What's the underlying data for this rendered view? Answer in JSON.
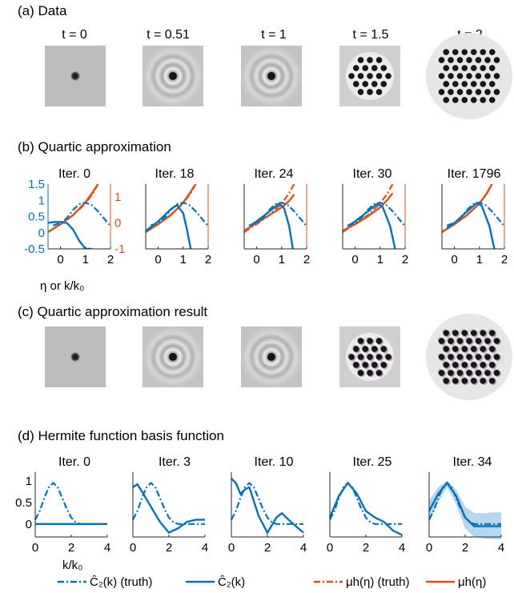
{
  "panels": {
    "a": {
      "title": "(a) Data",
      "columns": [
        "t = 0",
        "t = 0.51",
        "t = 1",
        "t = 1.5",
        "t = 2"
      ]
    },
    "b": {
      "title": "(b) Quartic approximation",
      "columns": [
        "Iter. 0",
        "Iter. 18",
        "Iter. 24",
        "Iter. 30",
        "Iter. 1796"
      ],
      "xlabel": "η or k/k₀",
      "left_ticks": [
        "1.5",
        "1",
        "0.5",
        "0",
        "-0.5"
      ],
      "right_ticks": [
        "1",
        "0",
        "-1"
      ],
      "x_ticks": [
        "0",
        "1",
        "2"
      ]
    },
    "c": {
      "title": "(c) Quartic approximation result"
    },
    "d": {
      "title": "(d) Hermite function basis function",
      "columns": [
        "Iter. 0",
        "Iter. 3",
        "Iter. 10",
        "Iter. 25",
        "Iter. 34"
      ],
      "xlabel": "k/k₀",
      "left_ticks": [
        "1",
        "0.5",
        "0"
      ],
      "x_ticks": [
        "0",
        "2",
        "4"
      ]
    }
  },
  "legend": [
    {
      "label": "Ĉ₂(k) (truth)",
      "color": "#0072bd",
      "dash": "dashdot"
    },
    {
      "label": "Ĉ₂(k)",
      "color": "#0072bd",
      "dash": "solid"
    },
    {
      "label": "μh(η) (truth)",
      "color": "#d95319",
      "dash": "dashdot"
    },
    {
      "label": "μh(η)",
      "color": "#d95319",
      "dash": "solid"
    }
  ],
  "colors": {
    "blue": "#0072bd",
    "orange": "#d95319",
    "band": "#a8cfee",
    "axis": "#262626"
  },
  "chart_data": [
    {
      "type": "line",
      "id": "b",
      "x_range": [
        -0.5,
        2
      ],
      "left_ylim": [
        -0.5,
        1.5
      ],
      "right_ylim": [
        -1,
        1.5
      ],
      "truth_C2": {
        "x": [
          -0.3,
          0,
          0.25,
          0.5,
          0.75,
          1,
          1.25,
          1.5,
          1.75,
          2
        ],
        "y": [
          0.22,
          0.3,
          0.45,
          0.7,
          0.88,
          0.93,
          0.85,
          0.66,
          0.43,
          0.2
        ]
      },
      "truth_mu": {
        "x": [
          -0.5,
          0,
          0.5,
          1,
          1.3,
          1.5
        ],
        "y": [
          -0.35,
          -0.05,
          0.3,
          0.75,
          1.15,
          1.5
        ]
      },
      "iterations": [
        {
          "C2": {
            "x": [
              -0.5,
              -0.25,
              0,
              0.25,
              0.5,
              0.75,
              1,
              1.25
            ],
            "y": [
              0.3,
              0.33,
              0.33,
              0.3,
              0.1,
              -0.25,
              -0.5,
              -0.5
            ]
          },
          "mu": {
            "x": [
              -0.5,
              0,
              0.5,
              1,
              1.3,
              1.5
            ],
            "y": [
              -0.35,
              -0.05,
              0.3,
              0.8,
              1.2,
              1.5
            ]
          }
        },
        {
          "C2": {
            "x": [
              -0.5,
              0,
              0.5,
              0.75,
              1,
              1.15,
              1.3
            ],
            "y": [
              0.05,
              0.35,
              0.72,
              0.85,
              0.6,
              0.1,
              -0.5
            ]
          },
          "mu": {
            "x": [
              -0.5,
              0,
              0.5,
              1,
              1.3,
              1.5
            ],
            "y": [
              -0.35,
              -0.05,
              0.3,
              0.78,
              1.2,
              1.5
            ]
          }
        },
        {
          "C2": {
            "x": [
              -0.3,
              0,
              0.5,
              0.9,
              1.1,
              1.3,
              1.45
            ],
            "y": [
              0.2,
              0.35,
              0.65,
              0.9,
              0.75,
              0.2,
              -0.5
            ]
          },
          "mu": {
            "x": [
              -0.5,
              0,
              0.5,
              1,
              1.3,
              1.5
            ],
            "y": [
              -0.3,
              0,
              0.3,
              0.6,
              0.85,
              1.1
            ]
          }
        },
        {
          "C2": {
            "x": [
              -0.3,
              0,
              0.5,
              0.9,
              1.1,
              1.4,
              1.6
            ],
            "y": [
              0.2,
              0.35,
              0.65,
              0.9,
              0.8,
              0.2,
              -0.5
            ]
          },
          "mu": {
            "x": [
              -0.5,
              0,
              0.5,
              1,
              1.3,
              1.5
            ],
            "y": [
              -0.3,
              -0.05,
              0.25,
              0.6,
              0.9,
              1.15
            ]
          }
        },
        {
          "C2": {
            "x": [
              -0.3,
              0,
              0.5,
              0.9,
              1.1,
              1.4,
              1.6
            ],
            "y": [
              0.15,
              0.3,
              0.65,
              0.92,
              0.82,
              0.2,
              -0.5
            ]
          },
          "mu": {
            "x": [
              -0.5,
              0,
              0.5,
              1,
              1.3,
              1.5
            ],
            "y": [
              -0.35,
              -0.05,
              0.3,
              0.75,
              1.15,
              1.5
            ]
          }
        }
      ]
    },
    {
      "type": "line",
      "id": "d",
      "x_range": [
        0,
        4
      ],
      "ylim": [
        -0.3,
        1.2
      ],
      "truth_C2": {
        "x": [
          0,
          0.25,
          0.5,
          0.75,
          1,
          1.25,
          1.5,
          1.75,
          2,
          2.25,
          2.5,
          3,
          4
        ],
        "y": [
          0.1,
          0.3,
          0.6,
          0.85,
          0.95,
          0.85,
          0.6,
          0.35,
          0.15,
          0.04,
          0,
          0,
          0
        ]
      },
      "iterations": [
        {
          "C2": {
            "x": [
              0,
              1,
              2,
              3,
              4
            ],
            "y": [
              0,
              0,
              0,
              0,
              0
            ]
          }
        },
        {
          "C2": {
            "x": [
              0,
              0.25,
              0.5,
              1,
              1.5,
              2,
              2.5,
              3,
              3.5,
              4
            ],
            "y": [
              0.85,
              0.92,
              0.75,
              0.4,
              0.05,
              -0.2,
              -0.1,
              0.05,
              0.1,
              0.1
            ]
          }
        },
        {
          "C2": {
            "x": [
              0,
              0.25,
              0.5,
              0.75,
              1,
              1.5,
              2,
              2.5,
              2.8,
              3.3,
              4
            ],
            "y": [
              1.05,
              0.95,
              0.7,
              0.8,
              0.85,
              0.2,
              -0.2,
              0.15,
              0.25,
              0.05,
              -0.2
            ]
          }
        },
        {
          "C2": {
            "x": [
              0,
              0.5,
              1,
              1.5,
              2,
              2.5,
              3,
              3.5,
              4
            ],
            "y": [
              0.15,
              0.65,
              0.95,
              0.7,
              0.3,
              0.15,
              0.05,
              -0.15,
              -0.25
            ]
          }
        },
        {
          "C2": {
            "x": [
              0,
              0.5,
              1,
              1.5,
              2,
              2.5,
              3,
              3.5,
              4
            ],
            "y": [
              0.3,
              0.7,
              0.95,
              0.65,
              0.15,
              -0.05,
              -0.05,
              -0.05,
              -0.05
            ]
          },
          "band": {
            "x": [
              0,
              0.5,
              1,
              1.5,
              2,
              2.5,
              3,
              3.5,
              4
            ],
            "lower": [
              0.05,
              0.5,
              0.85,
              0.45,
              -0.1,
              -0.3,
              -0.33,
              -0.35,
              -0.35
            ],
            "upper": [
              0.55,
              0.85,
              1.0,
              0.8,
              0.4,
              0.25,
              0.25,
              0.27,
              0.27
            ]
          }
        }
      ]
    }
  ]
}
